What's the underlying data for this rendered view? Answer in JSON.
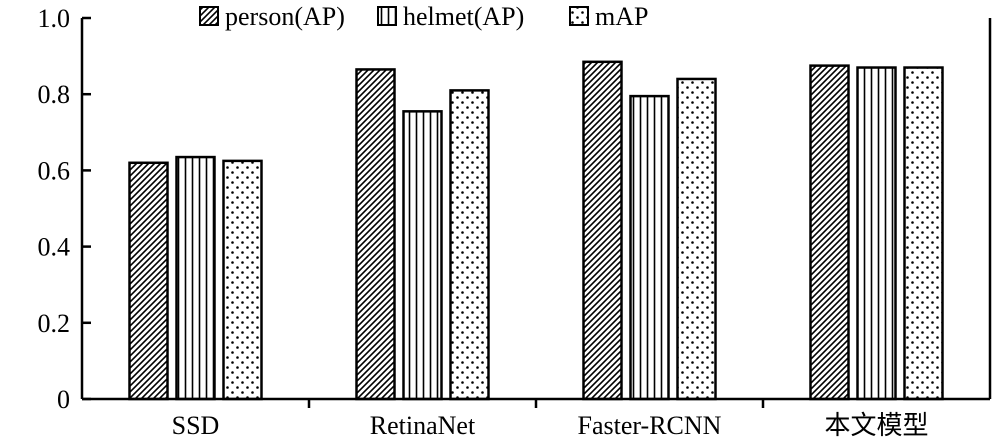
{
  "chart_data": {
    "type": "bar",
    "title": "",
    "xlabel": "",
    "ylabel": "",
    "categories": [
      "SSD",
      "RetinaNet",
      "Faster-RCNN",
      "本文模型"
    ],
    "series": [
      {
        "name": "person(AP)",
        "pattern": "diagonal-hatch",
        "values": [
          0.62,
          0.865,
          0.885,
          0.875
        ]
      },
      {
        "name": "helmet(AP)",
        "pattern": "vertical-lines",
        "values": [
          0.635,
          0.755,
          0.795,
          0.87
        ]
      },
      {
        "name": "mAP",
        "pattern": "dots",
        "values": [
          0.625,
          0.81,
          0.84,
          0.87
        ]
      }
    ],
    "ylim": [
      0,
      1.0
    ],
    "yticks": [
      "0",
      "0.2",
      "0.4",
      "0.6",
      "0.8",
      "1.0"
    ],
    "ytick_values": [
      0,
      0.2,
      0.4,
      0.6,
      0.8,
      1.0
    ],
    "grid": false,
    "legend_position": "top",
    "colors": {
      "bar_stroke": "#000000",
      "pattern_ink": "#000000",
      "background": "#ffffff"
    }
  }
}
